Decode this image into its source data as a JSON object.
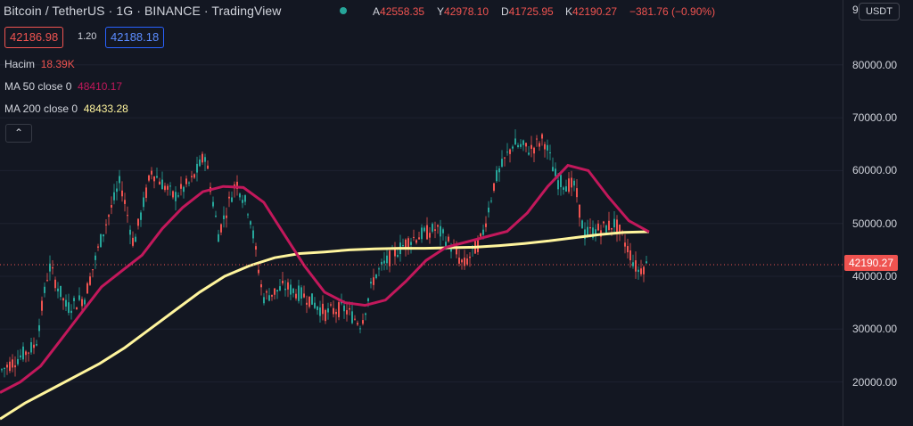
{
  "header": {
    "title": "Bitcoin / TetherUS · 1G · BINANCE · TradingView",
    "ohlc": {
      "a_label": "A",
      "a_value": "42558.35",
      "y_label": "Y",
      "y_value": "42978.10",
      "d_label": "D",
      "d_value": "41725.95",
      "k_label": "K",
      "k_value": "42190.27",
      "change": "−381.76 (−0.90%)"
    },
    "bid": "42186.98",
    "spread": "1.20",
    "ask": "42188.18"
  },
  "legend": {
    "volume_label": "Hacim",
    "volume_value": "18.39K",
    "ma50_label": "MA 50 close 0",
    "ma50_value": "48410.17",
    "ma200_label": "MA 200 close 0",
    "ma200_value": "48433.28",
    "collapse_icon": "chevron-up-icon"
  },
  "axis": {
    "currency": "USDT",
    "top_partial": "9(",
    "ticks": [
      "80000.00",
      "70000.00",
      "60000.00",
      "50000.00",
      "40000.00",
      "30000.00",
      "20000.00"
    ],
    "last_price": "42190.27"
  },
  "colors": {
    "up": "#26a69a",
    "down": "#ef5350",
    "ma50": "#c2185b",
    "ma200": "#fff59d",
    "background": "#131722"
  },
  "chart_data": {
    "type": "line",
    "title": "",
    "ylim": [
      17000,
      91000
    ],
    "last_price": 42190.27,
    "series": [
      {
        "name": "MA 50 close 0",
        "values": [
          18000,
          20000,
          23000,
          28000,
          33000,
          38000,
          41000,
          44000,
          49000,
          53000,
          56000,
          57000,
          56800,
          54000,
          48000,
          42000,
          37000,
          35000,
          34500,
          35500,
          39000,
          43000,
          45500,
          46500,
          47500,
          48500,
          52000,
          57000,
          61000,
          60000,
          55000,
          50500,
          48400
        ]
      },
      {
        "name": "MA 200 close 0",
        "values": [
          13000,
          16000,
          18500,
          21000,
          23500,
          26500,
          30000,
          33500,
          37000,
          40000,
          42000,
          43500,
          44300,
          44600,
          45000,
          45200,
          45300,
          45300,
          45400,
          45500,
          45800,
          46200,
          46700,
          47300,
          47900,
          48300,
          48430
        ]
      }
    ]
  }
}
